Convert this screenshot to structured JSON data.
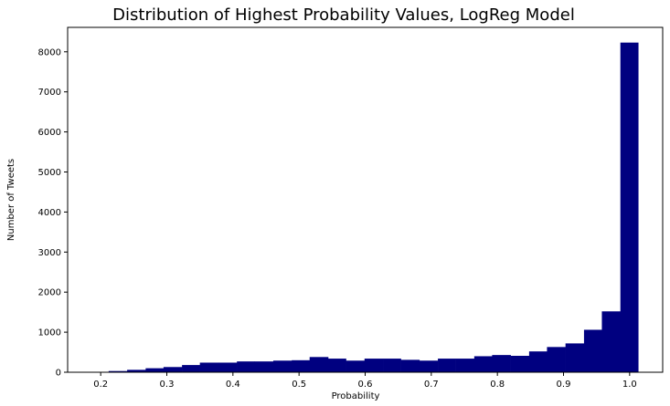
{
  "chart_data": {
    "type": "bar",
    "title": "Distribution of Highest Probability Values, LogReg Model",
    "xlabel": "Probability",
    "ylabel": "Number of Tweets",
    "bar_color": "#000080",
    "xlim": [
      0.15,
      1.05
    ],
    "ylim": [
      0,
      8610
    ],
    "xticks": [
      "0.2",
      "0.3",
      "0.4",
      "0.5",
      "0.6",
      "0.7",
      "0.8",
      "0.9",
      "1.0"
    ],
    "yticks": [
      "0",
      "1000",
      "2000",
      "3000",
      "4000",
      "5000",
      "6000",
      "7000",
      "8000"
    ],
    "grid": false,
    "bins": [
      {
        "x0": 0.185,
        "x1": 0.212,
        "value": 10
      },
      {
        "x0": 0.212,
        "x1": 0.24,
        "value": 30
      },
      {
        "x0": 0.24,
        "x1": 0.268,
        "value": 60
      },
      {
        "x0": 0.268,
        "x1": 0.295,
        "value": 100
      },
      {
        "x0": 0.295,
        "x1": 0.323,
        "value": 130
      },
      {
        "x0": 0.323,
        "x1": 0.35,
        "value": 180
      },
      {
        "x0": 0.35,
        "x1": 0.378,
        "value": 240
      },
      {
        "x0": 0.378,
        "x1": 0.406,
        "value": 240
      },
      {
        "x0": 0.406,
        "x1": 0.433,
        "value": 270
      },
      {
        "x0": 0.433,
        "x1": 0.461,
        "value": 270
      },
      {
        "x0": 0.461,
        "x1": 0.489,
        "value": 290
      },
      {
        "x0": 0.489,
        "x1": 0.516,
        "value": 300
      },
      {
        "x0": 0.516,
        "x1": 0.544,
        "value": 380
      },
      {
        "x0": 0.544,
        "x1": 0.571,
        "value": 340
      },
      {
        "x0": 0.571,
        "x1": 0.599,
        "value": 290
      },
      {
        "x0": 0.599,
        "x1": 0.627,
        "value": 340
      },
      {
        "x0": 0.627,
        "x1": 0.654,
        "value": 340
      },
      {
        "x0": 0.654,
        "x1": 0.682,
        "value": 310
      },
      {
        "x0": 0.682,
        "x1": 0.71,
        "value": 290
      },
      {
        "x0": 0.71,
        "x1": 0.737,
        "value": 340
      },
      {
        "x0": 0.737,
        "x1": 0.765,
        "value": 340
      },
      {
        "x0": 0.765,
        "x1": 0.792,
        "value": 400
      },
      {
        "x0": 0.792,
        "x1": 0.82,
        "value": 430
      },
      {
        "x0": 0.82,
        "x1": 0.848,
        "value": 410
      },
      {
        "x0": 0.848,
        "x1": 0.875,
        "value": 520
      },
      {
        "x0": 0.875,
        "x1": 0.903,
        "value": 630
      },
      {
        "x0": 0.903,
        "x1": 0.931,
        "value": 720
      },
      {
        "x0": 0.931,
        "x1": 0.958,
        "value": 1060
      },
      {
        "x0": 0.958,
        "x1": 0.986,
        "value": 1520
      },
      {
        "x0": 0.986,
        "x1": 1.013,
        "value": 8230
      }
    ]
  }
}
